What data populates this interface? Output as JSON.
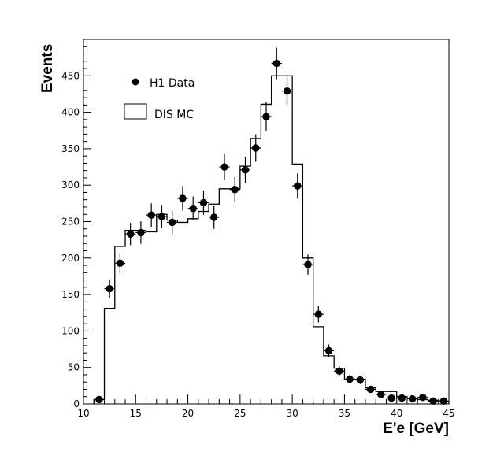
{
  "chart_data": {
    "type": "histogram",
    "xlabel": "E'e [GeV]",
    "xlabel_main": "E'",
    "xlabel_sub": "e",
    "xlabel_unit": "[GeV]",
    "ylabel": "Events",
    "xlim": [
      10,
      45
    ],
    "ylim": [
      0,
      500
    ],
    "x_ticks": [
      10,
      15,
      20,
      25,
      30,
      35,
      40,
      45
    ],
    "y_ticks": [
      0,
      50,
      100,
      150,
      200,
      250,
      300,
      350,
      400,
      450
    ],
    "grid": false,
    "legend": {
      "placement": "top-left",
      "entries": [
        "H1 Data",
        "DIS MC"
      ]
    },
    "series": [
      {
        "name": "H1 Data",
        "style": "points-with-errors",
        "x": [
          11.5,
          12.5,
          13.5,
          14.5,
          15.5,
          16.5,
          17.5,
          18.5,
          19.5,
          20.5,
          21.5,
          22.5,
          23.5,
          24.5,
          25.5,
          26.5,
          27.5,
          28.5,
          29.5,
          30.5,
          31.5,
          32.5,
          33.5,
          34.5,
          35.5,
          36.5,
          37.5,
          38.5,
          39.5,
          40.5,
          41.5,
          42.5,
          43.5,
          44.5
        ],
        "values": [
          6,
          158,
          193,
          233,
          235,
          259,
          257,
          249,
          282,
          268,
          276,
          256,
          325,
          294,
          321,
          351,
          394,
          467,
          429,
          299,
          191,
          123,
          73,
          45,
          34,
          33,
          20,
          13,
          8,
          8,
          7,
          9,
          4,
          4
        ]
      },
      {
        "name": "DIS MC",
        "style": "step",
        "bin_edges": [
          11,
          12,
          13,
          14,
          15,
          16,
          17,
          18,
          19,
          20,
          21,
          22,
          23,
          24,
          25,
          26,
          27,
          28,
          29,
          30,
          31,
          32,
          33,
          34,
          35,
          36,
          37,
          38,
          39,
          40,
          41,
          42,
          43,
          44,
          45
        ],
        "values": [
          6,
          131,
          216,
          238,
          238,
          236,
          260,
          252,
          249,
          254,
          264,
          274,
          295,
          295,
          326,
          364,
          411,
          450,
          450,
          329,
          200,
          106,
          66,
          49,
          34,
          34,
          22,
          17,
          17,
          10,
          8,
          6,
          5,
          3
        ]
      }
    ]
  }
}
